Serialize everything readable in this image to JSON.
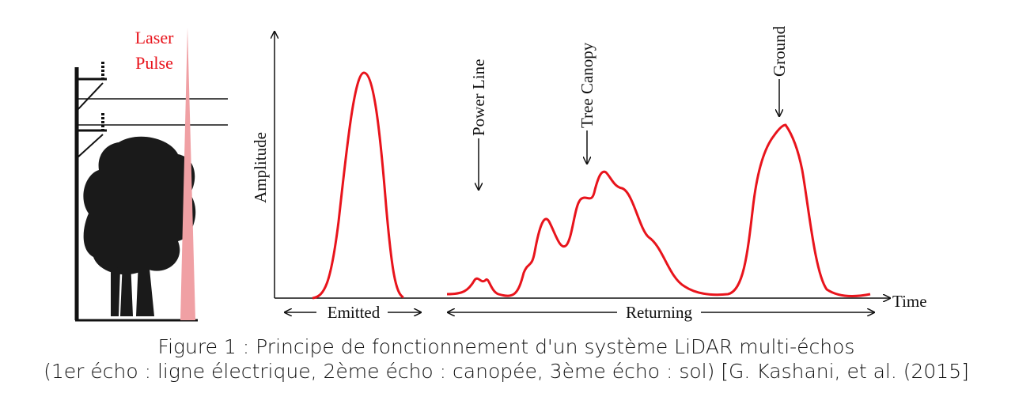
{
  "laser_label": [
    "Laser",
    "Pulse"
  ],
  "axis": {
    "y_label": "Amplitude",
    "x_label": "Time"
  },
  "annotations": {
    "power_line": "Power Line",
    "tree_canopy": "Tree Canopy",
    "ground": "Ground"
  },
  "spans": {
    "emitted": "Emitted",
    "returning": "Returning"
  },
  "caption": [
    "Figure 1 : Principe de fonctionnement d'un système LiDAR multi-échos",
    "(1er écho : ligne électrique, 2ème écho : canopée, 3ème écho : sol) [G. Kashani, et al. (2015]"
  ]
}
